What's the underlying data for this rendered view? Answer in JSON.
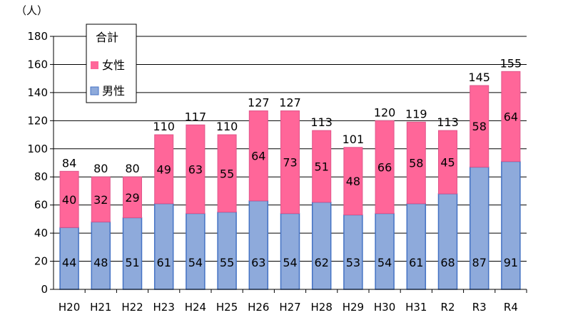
{
  "chart_data": {
    "type": "bar",
    "stacked": true,
    "ylabel": "（人）",
    "ylim": [
      0,
      180
    ],
    "yticks": [
      0,
      20,
      40,
      60,
      80,
      100,
      120,
      140,
      160,
      180
    ],
    "grid": true,
    "legend": {
      "position": "top-left",
      "title": "合計",
      "entries": [
        "女性",
        "男性"
      ]
    },
    "categories": [
      "H20",
      "H21",
      "H22",
      "H23",
      "H24",
      "H25",
      "H26",
      "H27",
      "H28",
      "H29",
      "H30",
      "H31",
      "R2",
      "R3",
      "R4"
    ],
    "series": [
      {
        "name": "男性",
        "color": "#8eaadb",
        "edge": "#4472c4",
        "values": [
          44,
          48,
          51,
          61,
          54,
          55,
          63,
          54,
          62,
          53,
          54,
          61,
          68,
          87,
          91
        ]
      },
      {
        "name": "女性",
        "color": "#ff6699",
        "edge": "#e0558a",
        "values": [
          40,
          32,
          29,
          49,
          63,
          55,
          64,
          73,
          51,
          48,
          66,
          58,
          45,
          58,
          64
        ]
      }
    ],
    "totals": [
      84,
      80,
      80,
      110,
      117,
      110,
      127,
      127,
      113,
      101,
      120,
      119,
      113,
      145,
      155
    ]
  }
}
